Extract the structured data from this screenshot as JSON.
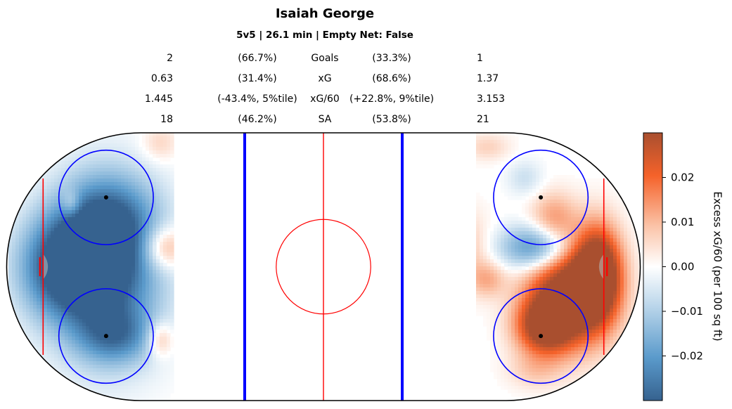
{
  "header": {
    "title": "Isaiah George",
    "subtitle": "5v5 | 26.1 min | Empty Net: False"
  },
  "stats": [
    {
      "left": "2",
      "left_pct": "(66.7%)",
      "label": "Goals",
      "right_pct": "(33.3%)",
      "right": "1"
    },
    {
      "left": "0.63",
      "left_pct": "(31.4%)",
      "label": "xG",
      "right_pct": "(68.6%)",
      "right": "1.37"
    },
    {
      "left": "1.445",
      "left_pct": "(-43.4%, 5%tile)",
      "label": "xG/60",
      "right_pct": "(+22.8%, 9%tile)",
      "right": "3.153"
    },
    {
      "left": "18",
      "left_pct": "(46.2%)",
      "label": "SA",
      "right_pct": "(53.8%)",
      "right": "21"
    }
  ],
  "colorbar": {
    "label": "Excess xG/60 (per 100 sq ft)",
    "ticks": [
      "0.02",
      "0.01",
      "0.00",
      "−0.01",
      "−0.02"
    ],
    "tick_values": [
      0.02,
      0.01,
      0.0,
      -0.01,
      -0.02
    ],
    "colors": {
      "high": "#a94f2f",
      "mid": "#ffffff",
      "low": "#36628f"
    }
  },
  "chart_data": {
    "type": "heatmap",
    "title": "Isaiah George",
    "subtitle": "5v5 | 26.1 min | Empty Net: False",
    "colorbar_label": "Excess xG/60 (per 100 sq ft)",
    "colorbar_ticks": [
      0.02,
      0.01,
      0.0,
      -0.01,
      -0.02
    ],
    "zones": [
      {
        "blobs": [
          {
            "cx": -82,
            "cy": 0,
            "rx": 10,
            "ry": 11,
            "v": -0.03
          },
          {
            "cx": -69,
            "cy": -1,
            "rx": 12,
            "ry": 18,
            "v": -0.03
          },
          {
            "cx": -68,
            "cy": 14,
            "rx": 10,
            "ry": 10,
            "v": -0.018
          },
          {
            "cx": -66,
            "cy": -22,
            "rx": 8,
            "ry": 6,
            "v": -0.016
          },
          {
            "cx": -80,
            "cy": 20,
            "rx": 2,
            "ry": 3,
            "v": 0.01
          },
          {
            "cx": -51,
            "cy": 6,
            "rx": 5,
            "ry": 5,
            "v": 0.016
          },
          {
            "cx": -52,
            "cy": -23,
            "rx": 3,
            "ry": 4,
            "v": 0.012
          },
          {
            "cx": -52,
            "cy": 39,
            "rx": 4,
            "ry": 4,
            "v": 0.006
          }
        ]
      },
      {
        "blobs": [
          {
            "cx": 78,
            "cy": -9,
            "rx": 9,
            "ry": 11,
            "v": 0.04
          },
          {
            "cx": 87,
            "cy": -2,
            "rx": 5,
            "ry": 10,
            "v": 0.04
          },
          {
            "cx": 70,
            "cy": -19,
            "rx": 6,
            "ry": 6,
            "v": 0.03
          },
          {
            "cx": 68,
            "cy": 6,
            "rx": 8,
            "ry": 5,
            "v": -0.025
          },
          {
            "cx": 73,
            "cy": 15,
            "rx": 5,
            "ry": 6,
            "v": 0.012
          },
          {
            "cx": 43,
            "cy": 6,
            "rx": 6,
            "ry": 8,
            "v": 0.01
          },
          {
            "cx": 52,
            "cy": -4,
            "rx": 4,
            "ry": 4,
            "v": 0.01
          },
          {
            "cx": 52,
            "cy": 38,
            "rx": 5,
            "ry": 3,
            "v": 0.006
          },
          {
            "cx": 67,
            "cy": -33,
            "rx": 6,
            "ry": 4,
            "v": 0.006
          },
          {
            "cx": 64,
            "cy": 28,
            "rx": 4,
            "ry": 4,
            "v": -0.006
          }
        ]
      }
    ]
  }
}
